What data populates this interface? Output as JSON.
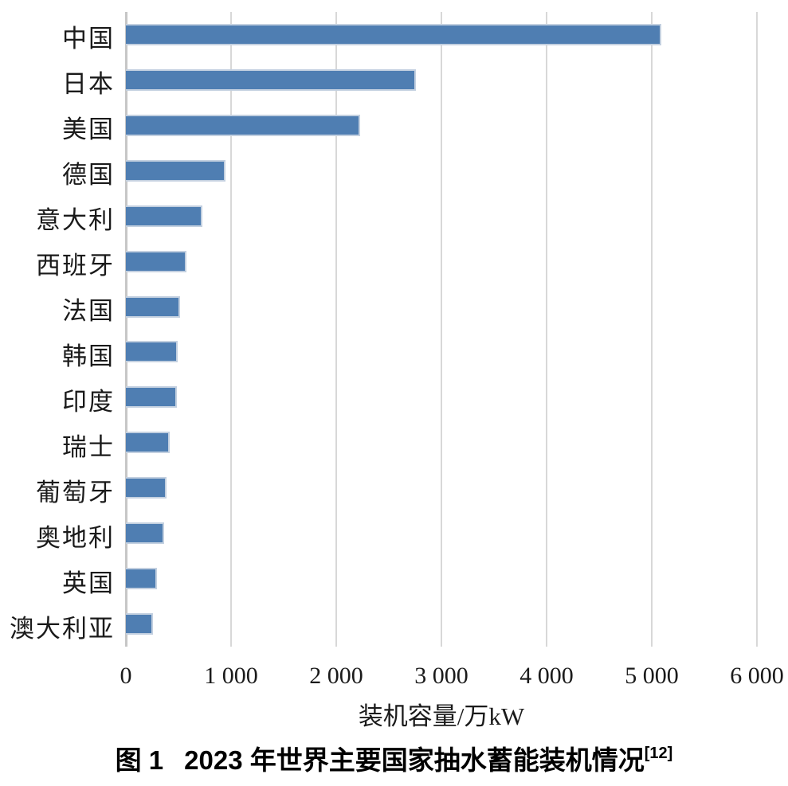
{
  "figure": {
    "caption": {
      "label": "图 1",
      "title": "2023 年世界主要国家抽水蓄能装机情况",
      "reference": "[12]"
    }
  },
  "chart_data": {
    "type": "bar",
    "orientation": "horizontal",
    "title": "",
    "xlabel": "装机容量/万kW",
    "ylabel": "",
    "categories": [
      "中国",
      "日本",
      "美国",
      "德国",
      "意大利",
      "西班牙",
      "法国",
      "韩国",
      "印度",
      "瑞士",
      "葡萄牙",
      "奥地利",
      "英国",
      "澳大利亚"
    ],
    "values": [
      5090,
      2760,
      2230,
      950,
      730,
      575,
      515,
      490,
      485,
      420,
      390,
      360,
      295,
      260
    ],
    "xlim": [
      0,
      6000
    ],
    "xticks": [
      0,
      1000,
      2000,
      3000,
      4000,
      5000,
      6000
    ],
    "xtick_labels": [
      "0",
      "1 000",
      "2 000",
      "3 000",
      "4 000",
      "5 000",
      "6 000"
    ],
    "grid": "vertical-gridlines-on",
    "legend": "none",
    "bar_color": "#4f7eb2",
    "bar_border_color": "#c3d0e0",
    "grid_color": "#d8d8d8",
    "axis_line_color": "#c6c6c6"
  }
}
